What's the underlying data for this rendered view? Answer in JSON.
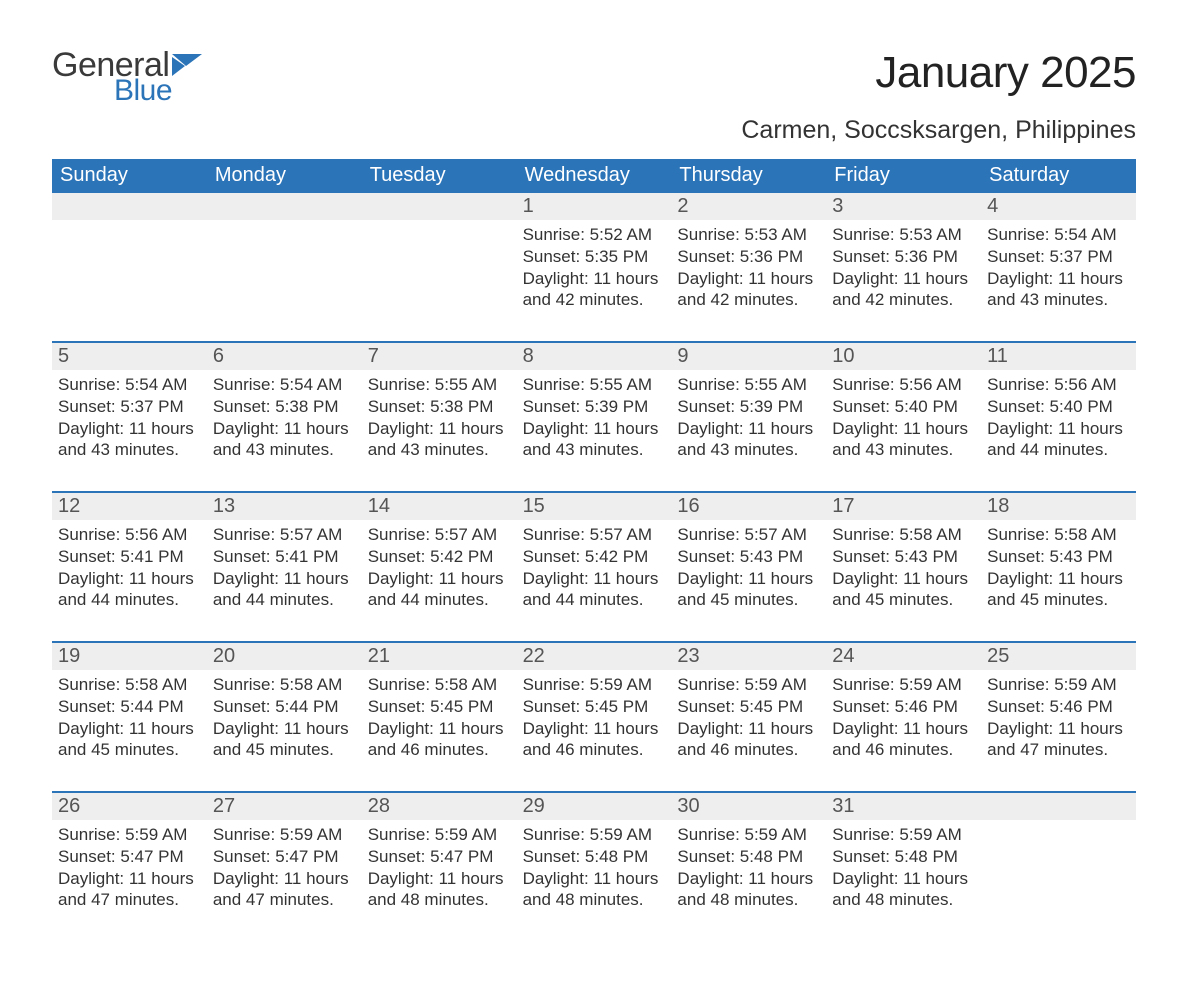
{
  "brand": {
    "word1": "General",
    "word2": "Blue",
    "accent": "#2b74b8"
  },
  "title": "January 2025",
  "location": "Carmen, Soccsksargen, Philippines",
  "weekdays": [
    "Sunday",
    "Monday",
    "Tuesday",
    "Wednesday",
    "Thursday",
    "Friday",
    "Saturday"
  ],
  "labels": {
    "sunrise": "Sunrise:",
    "sunset": "Sunset:",
    "daylight": "Daylight:"
  },
  "style": {
    "header_bg": "#2b74b8",
    "header_fg": "#ffffff",
    "daynum_bg": "#eeeeee",
    "text_color": "#333333",
    "title_fontsize": 44,
    "location_fontsize": 25,
    "weekday_fontsize": 20,
    "daynum_fontsize": 20,
    "body_fontsize": 17,
    "week_border_color": "#2b74b8"
  },
  "weeks": [
    [
      null,
      null,
      null,
      {
        "n": "1",
        "sr": "5:52 AM",
        "ss": "5:35 PM",
        "dl": "11 hours and 42 minutes."
      },
      {
        "n": "2",
        "sr": "5:53 AM",
        "ss": "5:36 PM",
        "dl": "11 hours and 42 minutes."
      },
      {
        "n": "3",
        "sr": "5:53 AM",
        "ss": "5:36 PM",
        "dl": "11 hours and 42 minutes."
      },
      {
        "n": "4",
        "sr": "5:54 AM",
        "ss": "5:37 PM",
        "dl": "11 hours and 43 minutes."
      }
    ],
    [
      {
        "n": "5",
        "sr": "5:54 AM",
        "ss": "5:37 PM",
        "dl": "11 hours and 43 minutes."
      },
      {
        "n": "6",
        "sr": "5:54 AM",
        "ss": "5:38 PM",
        "dl": "11 hours and 43 minutes."
      },
      {
        "n": "7",
        "sr": "5:55 AM",
        "ss": "5:38 PM",
        "dl": "11 hours and 43 minutes."
      },
      {
        "n": "8",
        "sr": "5:55 AM",
        "ss": "5:39 PM",
        "dl": "11 hours and 43 minutes."
      },
      {
        "n": "9",
        "sr": "5:55 AM",
        "ss": "5:39 PM",
        "dl": "11 hours and 43 minutes."
      },
      {
        "n": "10",
        "sr": "5:56 AM",
        "ss": "5:40 PM",
        "dl": "11 hours and 43 minutes."
      },
      {
        "n": "11",
        "sr": "5:56 AM",
        "ss": "5:40 PM",
        "dl": "11 hours and 44 minutes."
      }
    ],
    [
      {
        "n": "12",
        "sr": "5:56 AM",
        "ss": "5:41 PM",
        "dl": "11 hours and 44 minutes."
      },
      {
        "n": "13",
        "sr": "5:57 AM",
        "ss": "5:41 PM",
        "dl": "11 hours and 44 minutes."
      },
      {
        "n": "14",
        "sr": "5:57 AM",
        "ss": "5:42 PM",
        "dl": "11 hours and 44 minutes."
      },
      {
        "n": "15",
        "sr": "5:57 AM",
        "ss": "5:42 PM",
        "dl": "11 hours and 44 minutes."
      },
      {
        "n": "16",
        "sr": "5:57 AM",
        "ss": "5:43 PM",
        "dl": "11 hours and 45 minutes."
      },
      {
        "n": "17",
        "sr": "5:58 AM",
        "ss": "5:43 PM",
        "dl": "11 hours and 45 minutes."
      },
      {
        "n": "18",
        "sr": "5:58 AM",
        "ss": "5:43 PM",
        "dl": "11 hours and 45 minutes."
      }
    ],
    [
      {
        "n": "19",
        "sr": "5:58 AM",
        "ss": "5:44 PM",
        "dl": "11 hours and 45 minutes."
      },
      {
        "n": "20",
        "sr": "5:58 AM",
        "ss": "5:44 PM",
        "dl": "11 hours and 45 minutes."
      },
      {
        "n": "21",
        "sr": "5:58 AM",
        "ss": "5:45 PM",
        "dl": "11 hours and 46 minutes."
      },
      {
        "n": "22",
        "sr": "5:59 AM",
        "ss": "5:45 PM",
        "dl": "11 hours and 46 minutes."
      },
      {
        "n": "23",
        "sr": "5:59 AM",
        "ss": "5:45 PM",
        "dl": "11 hours and 46 minutes."
      },
      {
        "n": "24",
        "sr": "5:59 AM",
        "ss": "5:46 PM",
        "dl": "11 hours and 46 minutes."
      },
      {
        "n": "25",
        "sr": "5:59 AM",
        "ss": "5:46 PM",
        "dl": "11 hours and 47 minutes."
      }
    ],
    [
      {
        "n": "26",
        "sr": "5:59 AM",
        "ss": "5:47 PM",
        "dl": "11 hours and 47 minutes."
      },
      {
        "n": "27",
        "sr": "5:59 AM",
        "ss": "5:47 PM",
        "dl": "11 hours and 47 minutes."
      },
      {
        "n": "28",
        "sr": "5:59 AM",
        "ss": "5:47 PM",
        "dl": "11 hours and 48 minutes."
      },
      {
        "n": "29",
        "sr": "5:59 AM",
        "ss": "5:48 PM",
        "dl": "11 hours and 48 minutes."
      },
      {
        "n": "30",
        "sr": "5:59 AM",
        "ss": "5:48 PM",
        "dl": "11 hours and 48 minutes."
      },
      {
        "n": "31",
        "sr": "5:59 AM",
        "ss": "5:48 PM",
        "dl": "11 hours and 48 minutes."
      },
      null
    ]
  ]
}
